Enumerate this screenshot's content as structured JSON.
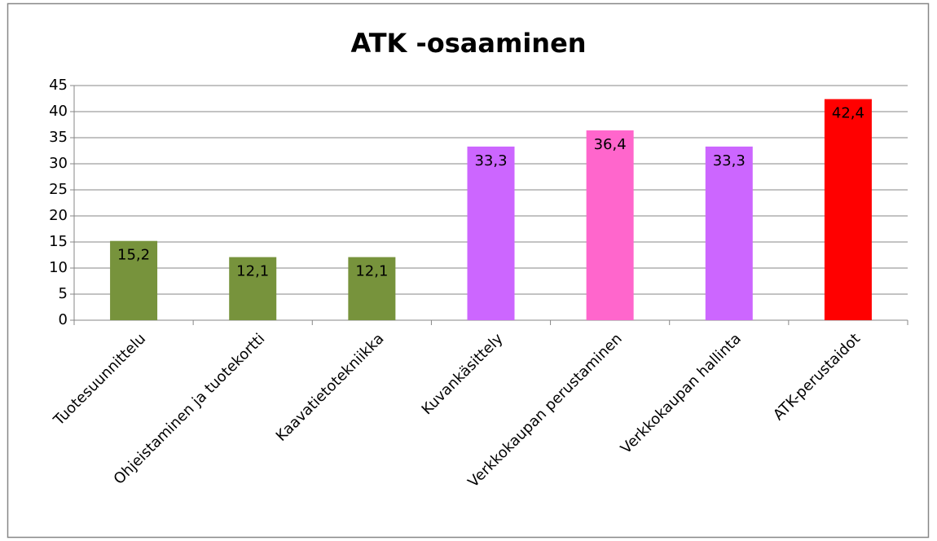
{
  "chart_data": {
    "type": "bar",
    "title": "ATK -osaaminen",
    "categories": [
      "Tuotesuunnittelu",
      "Ohjeistaminen  ja tuotekortti",
      "Kaavatietotekniikka",
      "Kuvankäsittely",
      "Verkkokaupan perustaminen",
      "Verkkokaupan hallinta",
      "ATK-perustaidot"
    ],
    "values": [
      15.2,
      12.1,
      12.1,
      33.3,
      36.4,
      33.3,
      42.4
    ],
    "value_labels": [
      "15,2",
      "12,1",
      "12,1",
      "33,3",
      "36,4",
      "33,3",
      "42,4"
    ],
    "colors": [
      "#77933c",
      "#77933c",
      "#77933c",
      "#cc66ff",
      "#ff66cc",
      "#cc66ff",
      "#ff0000"
    ],
    "ylim": [
      0,
      45
    ],
    "yticks": [
      0,
      5,
      10,
      15,
      20,
      25,
      30,
      35,
      40,
      45
    ],
    "grid": true
  }
}
